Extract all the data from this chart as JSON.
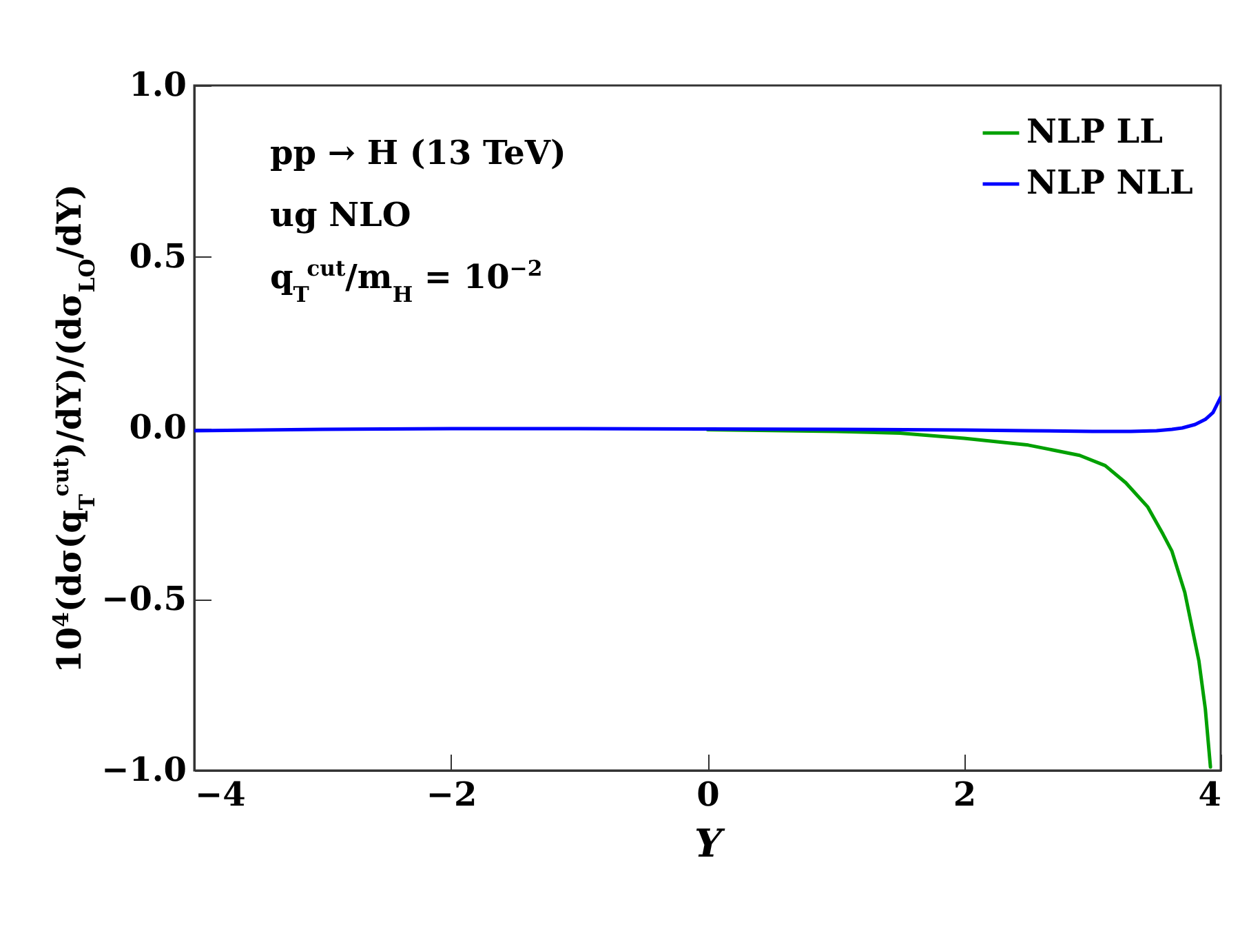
{
  "chart_data": {
    "type": "line",
    "xlabel": "Y",
    "ylabel": "10$^{4}$(dσ(q$_{T}$$^{cut}$)/dY)/(dσ$_{LO}$/dY)",
    "annotations": [
      "pp → H (13 TeV)",
      "ug NLO",
      "q$_{T}$$^{cut}$/m$_{H}$ = 10$^{−2}$"
    ],
    "xlim": [
      -4,
      4
    ],
    "xticks": [
      -4,
      -2,
      0,
      2,
      4
    ],
    "ylim": [
      -1,
      1
    ],
    "yticks": [
      {
        "value": -1,
        "label": "−1.0"
      },
      {
        "value": -0.5,
        "label": "−0.5"
      },
      {
        "value": 0,
        "label": "0.0"
      },
      {
        "value": 0.5,
        "label": "0.5"
      },
      {
        "value": 1,
        "label": "1.0"
      }
    ],
    "grid": false,
    "legend": "top right",
    "line_style": "solid",
    "marker": "none",
    "series": [
      {
        "name": "NLP LL",
        "color": "#00a000",
        "x": [
          0,
          1,
          1.5,
          2,
          2.5,
          2.9,
          3.1,
          3.26,
          3.43,
          3.55,
          3.62,
          3.72,
          3.83,
          3.88,
          3.92
        ],
        "values": [
          -0.005,
          -0.01,
          -0.015,
          -0.03,
          -0.05,
          -0.08,
          -0.11,
          -0.16,
          -0.23,
          -0.31,
          -0.36,
          -0.48,
          -0.68,
          -0.82,
          -0.99
        ]
      },
      {
        "name": "NLP NLL",
        "color": "#0000ff",
        "x": [
          -4,
          -3,
          -2,
          -1,
          0,
          1,
          2,
          2.5,
          3,
          3.3,
          3.5,
          3.62,
          3.7,
          3.8,
          3.88,
          3.94,
          4
        ],
        "values": [
          -0.008,
          -0.004,
          -0.002,
          -0.002,
          -0.003,
          -0.004,
          -0.006,
          -0.008,
          -0.01,
          -0.01,
          -0.008,
          -0.004,
          0,
          0.01,
          0.025,
          0.045,
          0.09
        ]
      }
    ]
  }
}
